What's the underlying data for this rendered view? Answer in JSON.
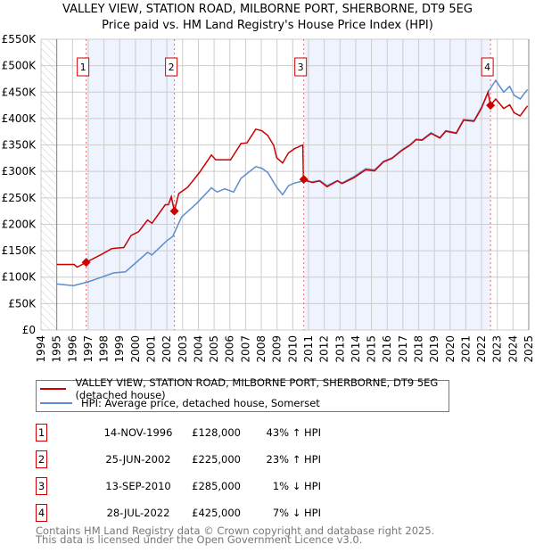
{
  "title_line1": "VALLEY VIEW, STATION ROAD, MILBORNE PORT, SHERBORNE, DT9 5EG",
  "title_line2": "Price paid vs. HM Land Registry's House Price Index (HPI)",
  "chart_data": {
    "type": "line",
    "ylim": [
      0,
      550000
    ],
    "xlim": [
      1994,
      2025
    ],
    "y_ticks": [
      {
        "v": 0,
        "label": "£0"
      },
      {
        "v": 50000,
        "label": "£50K"
      },
      {
        "v": 100000,
        "label": "£100K"
      },
      {
        "v": 150000,
        "label": "£150K"
      },
      {
        "v": 200000,
        "label": "£200K"
      },
      {
        "v": 250000,
        "label": "£250K"
      },
      {
        "v": 300000,
        "label": "£300K"
      },
      {
        "v": 350000,
        "label": "£350K"
      },
      {
        "v": 400000,
        "label": "£400K"
      },
      {
        "v": 450000,
        "label": "£450K"
      },
      {
        "v": 500000,
        "label": "£500K"
      },
      {
        "v": 550000,
        "label": "£550K"
      }
    ],
    "x_ticks": [
      "1994",
      "1995",
      "1996",
      "1997",
      "1998",
      "1999",
      "2000",
      "2001",
      "2002",
      "2003",
      "2004",
      "2005",
      "2006",
      "2007",
      "2008",
      "2009",
      "2010",
      "2011",
      "2012",
      "2013",
      "2014",
      "2015",
      "2016",
      "2017",
      "2018",
      "2019",
      "2020",
      "2021",
      "2022",
      "2023",
      "2024",
      "2025"
    ],
    "colors": {
      "property": "#cc0000",
      "hpi": "#5b8dd0",
      "shade": "#eef3fd",
      "grid": "#cccccc"
    },
    "series": [
      {
        "name": "VALLEY VIEW, STATION ROAD, MILBORNE PORT, SHERBORNE, DT9 5EG (detached house)",
        "key": "property",
        "x": [
          1995,
          1996.1,
          1996.3,
          1996.87,
          1997.85,
          1998.5,
          1999.26,
          1999.73,
          2000.2,
          2000.77,
          2001.05,
          2001.9,
          2002.1,
          2002.28,
          2002.48,
          2002.75,
          2003.32,
          2004.07,
          2004.83,
          2005.1,
          2005.58,
          2006.05,
          2006.71,
          2007.09,
          2007.65,
          2008.03,
          2008.41,
          2008.79,
          2008.98,
          2009.35,
          2009.73,
          2010.11,
          2010.64,
          2010.68,
          2011.24,
          2011.71,
          2012.18,
          2012.84,
          2013.13,
          2013.88,
          2014.64,
          2015.2,
          2015.77,
          2016.33,
          2016.9,
          2017.47,
          2017.84,
          2018.22,
          2018.79,
          2019.35,
          2019.73,
          2020.39,
          2020.86,
          2021.52,
          2022.0,
          2022.41,
          2022.57,
          2022.9,
          2023.41,
          2023.79,
          2024.07,
          2024.45,
          2024.92
        ],
        "y": [
          124000,
          124000,
          119000,
          128000,
          143000,
          154000,
          156000,
          179000,
          186000,
          208000,
          202000,
          237000,
          237000,
          252000,
          225000,
          258000,
          270000,
          298000,
          331000,
          322000,
          322000,
          322000,
          353000,
          354000,
          380000,
          377000,
          368000,
          349000,
          326000,
          316000,
          335000,
          343000,
          350000,
          285000,
          279000,
          282000,
          271000,
          282000,
          277000,
          288000,
          303000,
          301000,
          318000,
          325000,
          339000,
          350000,
          360000,
          359000,
          372000,
          363000,
          376000,
          372000,
          397000,
          395000,
          420000,
          450000,
          425000,
          437000,
          419000,
          426000,
          411000,
          405000,
          424000
        ]
      },
      {
        "name": "HPI: Average price, detached house, Somerset",
        "key": "hpi",
        "x": [
          1995,
          1996.06,
          1996.98,
          1997.66,
          1998.6,
          1999.36,
          2000.1,
          2000.77,
          2001.05,
          2002.0,
          2002.37,
          2002.94,
          2003.88,
          2004.83,
          2005.2,
          2005.67,
          2006.24,
          2006.71,
          2007.65,
          2008.03,
          2008.41,
          2008.98,
          2009.35,
          2009.73,
          2010.11,
          2010.67,
          2011.24,
          2011.71,
          2012.18,
          2012.84,
          2013.13,
          2013.88,
          2014.64,
          2015.2,
          2015.77,
          2016.33,
          2016.9,
          2017.47,
          2017.84,
          2018.22,
          2018.79,
          2019.35,
          2019.73,
          2020.39,
          2020.86,
          2021.52,
          2022.0,
          2022.47,
          2022.9,
          2023.41,
          2023.79,
          2024.07,
          2024.45,
          2024.92
        ],
        "y": [
          87000,
          84000,
          91000,
          98000,
          108000,
          110000,
          129000,
          147000,
          142000,
          169000,
          177000,
          214000,
          239000,
          269000,
          261000,
          267000,
          261000,
          287000,
          309000,
          306000,
          298000,
          270000,
          256000,
          273000,
          278000,
          282000,
          280000,
          283000,
          273000,
          283000,
          278000,
          290000,
          305000,
          303000,
          319000,
          326000,
          340000,
          351000,
          361000,
          360000,
          373000,
          364000,
          377000,
          373000,
          398000,
          396000,
          422000,
          453000,
          472000,
          450000,
          461000,
          444000,
          437000,
          455000
        ]
      }
    ],
    "sales": [
      {
        "n": "1",
        "x": 1996.87,
        "y": 128000
      },
      {
        "n": "2",
        "x": 2002.48,
        "y": 225000
      },
      {
        "n": "3",
        "x": 2010.7,
        "y": 285000
      },
      {
        "n": "4",
        "x": 2022.57,
        "y": 425000
      }
    ]
  },
  "legend": {
    "property": "VALLEY VIEW, STATION ROAD, MILBORNE PORT, SHERBORNE, DT9 5EG (detached house)",
    "hpi": "HPI: Average price, detached house, Somerset"
  },
  "transactions": [
    {
      "n": "1",
      "date": "14-NOV-1996",
      "price": "£128,000",
      "hpi": "43% ↑ HPI"
    },
    {
      "n": "2",
      "date": "25-JUN-2002",
      "price": "£225,000",
      "hpi": "23% ↑ HPI"
    },
    {
      "n": "3",
      "date": "13-SEP-2010",
      "price": "£285,000",
      "hpi": "1% ↓ HPI"
    },
    {
      "n": "4",
      "date": "28-JUL-2022",
      "price": "£425,000",
      "hpi": "7% ↓ HPI"
    }
  ],
  "footer": {
    "line1": "Contains HM Land Registry data © Crown copyright and database right 2025.",
    "line2": "This data is licensed under the Open Government Licence v3.0."
  }
}
